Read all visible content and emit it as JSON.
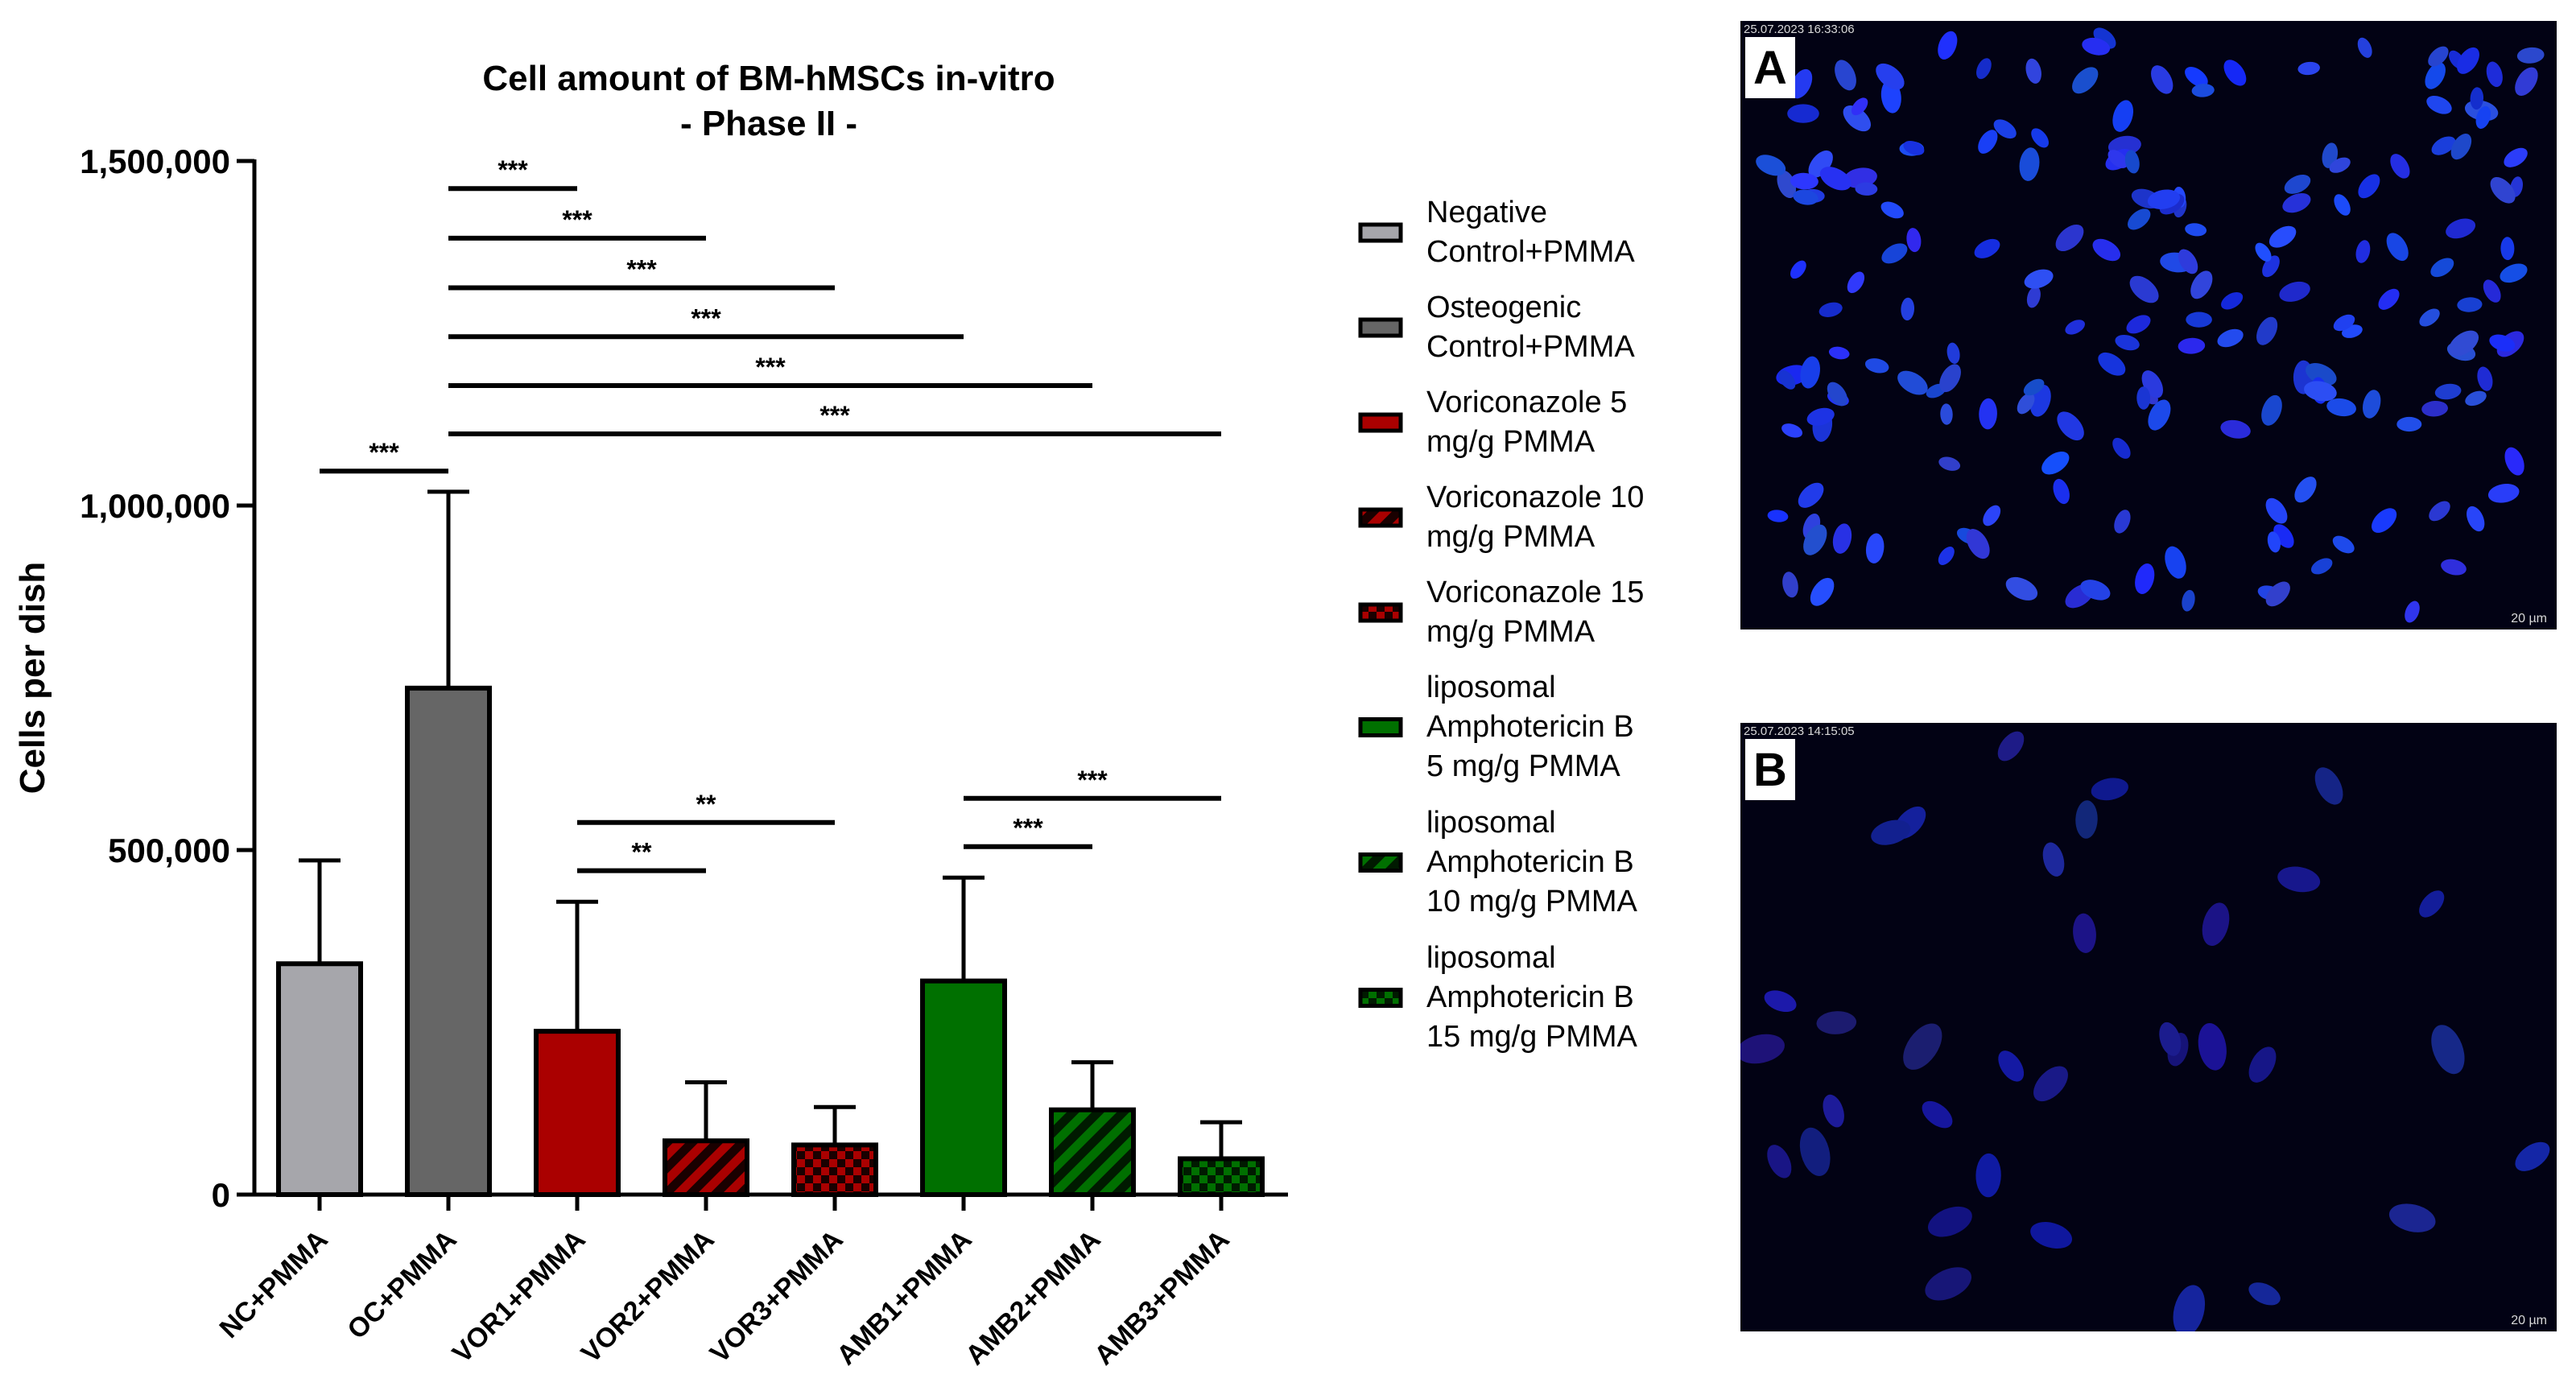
{
  "chart_data": {
    "type": "bar",
    "title": "Cell amount of BM-hMSCs in-vitro",
    "subtitle": "- Phase II -",
    "xlabel": "",
    "ylabel": "Cells per dish",
    "ylim": [
      0,
      1500000
    ],
    "yticks": [
      0,
      500000,
      1000000,
      1500000
    ],
    "ytick_labels": [
      "0",
      "500,000",
      "1,000,000",
      "1,500,000"
    ],
    "categories": [
      "NC+PMMA",
      "OC+PMMA",
      "VOR1+PMMA",
      "VOR2+PMMA",
      "VOR3+PMMA",
      "AMB1+PMMA",
      "AMB2+PMMA",
      "AMB3+PMMA"
    ],
    "values": [
      335000,
      735000,
      237000,
      78000,
      72000,
      310000,
      123000,
      52000
    ],
    "error_upper": [
      485000,
      1020000,
      425000,
      163000,
      127000,
      460000,
      192000,
      105000
    ],
    "legend": [
      "Negative Control+PMMA",
      "Osteogenic Control+PMMA",
      "Voriconazole 5 mg/g PMMA",
      "Voriconazole 10 mg/g PMMA",
      "Voriconazole 15 mg/g PMMA",
      "liposomal Amphotericin B 5 mg/g PMMA",
      "liposomal Amphotericin B 10 mg/g PMMA",
      "liposomal Amphotericin B 15 mg/g PMMA"
    ],
    "legend_placement": "right",
    "grid": false,
    "fill_colors": [
      "#a6a6ab",
      "#666666",
      "#aa0000",
      "#aa0000",
      "#aa0000",
      "#007000",
      "#007000",
      "#007000"
    ],
    "patterns": [
      "solid",
      "solid",
      "solid",
      "diagonal",
      "checker",
      "solid",
      "diagonal",
      "checker"
    ],
    "significance": [
      {
        "from": 0,
        "to": 1,
        "label": "***"
      },
      {
        "from": 1,
        "to": 2,
        "label": "***"
      },
      {
        "from": 1,
        "to": 3,
        "label": "***"
      },
      {
        "from": 1,
        "to": 4,
        "label": "***"
      },
      {
        "from": 1,
        "to": 5,
        "label": "***"
      },
      {
        "from": 1,
        "to": 6,
        "label": "***"
      },
      {
        "from": 1,
        "to": 7,
        "label": "***"
      },
      {
        "from": 2,
        "to": 3,
        "label": "**"
      },
      {
        "from": 2,
        "to": 4,
        "label": "**"
      },
      {
        "from": 5,
        "to": 6,
        "label": "***"
      },
      {
        "from": 5,
        "to": 7,
        "label": "***"
      }
    ]
  },
  "panels": [
    {
      "letter": "A",
      "timestamp": "25.07.2023 16:33:06",
      "scale_bar": "20 µm"
    },
    {
      "letter": "B",
      "timestamp": "25.07.2023 14:15:05",
      "scale_bar": "20 µm"
    }
  ]
}
